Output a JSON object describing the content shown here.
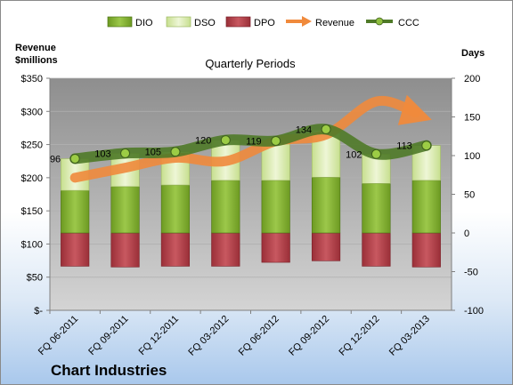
{
  "chart_data": {
    "type": "bar",
    "title": "Quarterly Periods",
    "company": "Chart Industries",
    "left_axis_title": [
      "Revenue",
      "$millions"
    ],
    "right_axis_title": "Days",
    "left_ticks": [
      "$-",
      "$50",
      "$100",
      "$150",
      "$200",
      "$250",
      "$300",
      "$350"
    ],
    "left_ylim": [
      0,
      350
    ],
    "right_ticks": [
      "-100",
      "-50",
      "0",
      "50",
      "100",
      "150",
      "200"
    ],
    "right_ylim": [
      -100,
      200
    ],
    "categories": [
      "FQ 06-2011",
      "FQ 09-2011",
      "FQ 12-2011",
      "FQ 03-2012",
      "FQ 06-2012",
      "FQ 09-2012",
      "FQ 12-2012",
      "FQ 03-2013"
    ],
    "legend": [
      "DIO",
      "DSO",
      "DPO",
      "Revenue",
      "CCC"
    ],
    "series": [
      {
        "name": "DIO",
        "axis": "days",
        "values": [
          55,
          60,
          62,
          68,
          68,
          72,
          64,
          68
        ]
      },
      {
        "name": "DSO",
        "axis": "days",
        "values": [
          41,
          43,
          43,
          52,
          51,
          61,
          38,
          45
        ]
      },
      {
        "name": "DPO",
        "axis": "days",
        "values": [
          -43,
          -44,
          -43,
          -43,
          -38,
          -36,
          -43,
          -44
        ]
      },
      {
        "name": "Revenue",
        "axis": "revenue",
        "values": [
          200,
          215,
          230,
          225,
          255,
          265,
          315,
          290
        ]
      },
      {
        "name": "CCC",
        "axis": "days",
        "values": [
          96,
          103,
          105,
          120,
          119,
          134,
          102,
          113
        ]
      }
    ],
    "ccc_labels": [
      "96",
      "103",
      "105",
      "120",
      "119",
      "134",
      "102",
      "113"
    ],
    "colors": {
      "DIO": "#7dab2f",
      "DSO": "#d6e8a8",
      "DPO": "#b8404a",
      "Revenue": "#f08a3c",
      "CCC": "#4f7a28"
    },
    "grid": true,
    "legend_position": "top"
  }
}
